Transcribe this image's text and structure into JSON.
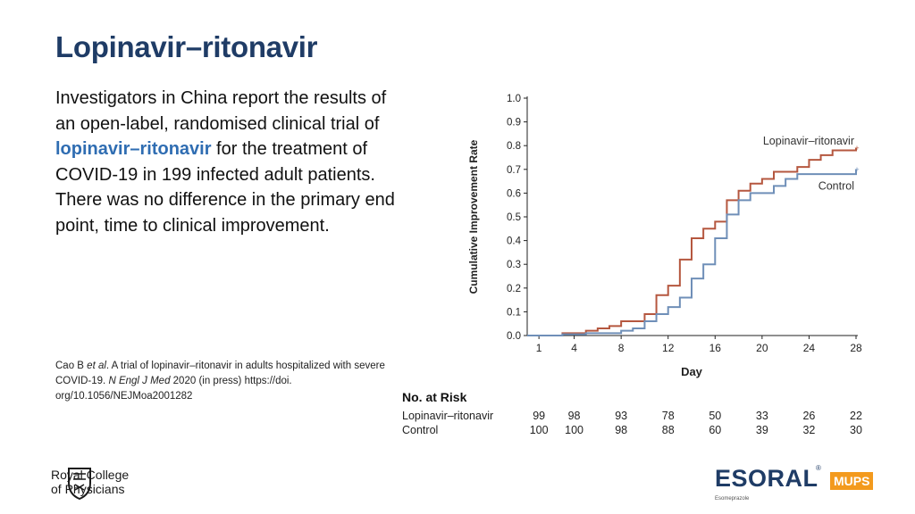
{
  "slide": {
    "title": "Lopinavir–ritonavir",
    "body_before": "Investigators in China report the results of an open-label, randomised clinical trial of ",
    "body_highlight": "lopinavir–ritonavir",
    "body_after": " for the treatment of COVID-19 in 199 infected adult patients. There was no difference in the primary end point, time to clinical improvement.",
    "citation_before": "Cao B ",
    "citation_italic1": "et al",
    "citation_mid": ". A trial of lopinavir–ritonavir in adults hospitalized with severe COVID-19. ",
    "citation_italic2": "N Engl J Med",
    "citation_after": " 2020 (in press) https://doi. org/10.1056/NEJMoa2001282"
  },
  "logos": {
    "rcp_line1": "Royal College",
    "rcp_line2": "of Physicians",
    "esoral": "ESORAL",
    "esoral_reg": "®",
    "mups": "MUPS",
    "esoral_sub": "Esomeprazole"
  },
  "colors": {
    "title": "#1f3c66",
    "highlight": "#2f6db2",
    "lopinavir_series": "#b5573f",
    "control_series": "#6f8fb8",
    "mups_badge": "#f39a1d"
  },
  "chart_data": {
    "type": "line",
    "subtype": "step",
    "ylabel": "Cumulative Improvement Rate",
    "xlabel": "Day",
    "xticks": [
      1,
      4,
      8,
      12,
      16,
      20,
      24,
      28
    ],
    "yticks": [
      "0.0",
      "0.1",
      "0.2",
      "0.3",
      "0.4",
      "0.5",
      "0.6",
      "0.7",
      "0.8",
      "0.9",
      "1.0"
    ],
    "xlim": [
      0,
      28
    ],
    "ylim": [
      0,
      1.0
    ],
    "series": [
      {
        "name": "Lopinavir–ritonavir",
        "color": "#b5573f",
        "points": [
          [
            0,
            0
          ],
          [
            3,
            0.01
          ],
          [
            5,
            0.02
          ],
          [
            6,
            0.03
          ],
          [
            7,
            0.04
          ],
          [
            8,
            0.06
          ],
          [
            10,
            0.09
          ],
          [
            11,
            0.17
          ],
          [
            12,
            0.21
          ],
          [
            13,
            0.32
          ],
          [
            14,
            0.41
          ],
          [
            15,
            0.45
          ],
          [
            16,
            0.48
          ],
          [
            17,
            0.57
          ],
          [
            18,
            0.61
          ],
          [
            19,
            0.64
          ],
          [
            20,
            0.66
          ],
          [
            21,
            0.69
          ],
          [
            23,
            0.71
          ],
          [
            24,
            0.74
          ],
          [
            25,
            0.76
          ],
          [
            26,
            0.78
          ],
          [
            28,
            0.79
          ]
        ]
      },
      {
        "name": "Control",
        "color": "#6f8fb8",
        "points": [
          [
            0,
            0
          ],
          [
            3,
            0.005
          ],
          [
            5,
            0.01
          ],
          [
            8,
            0.02
          ],
          [
            9,
            0.03
          ],
          [
            10,
            0.06
          ],
          [
            11,
            0.09
          ],
          [
            12,
            0.12
          ],
          [
            13,
            0.16
          ],
          [
            14,
            0.24
          ],
          [
            15,
            0.3
          ],
          [
            16,
            0.41
          ],
          [
            17,
            0.51
          ],
          [
            18,
            0.57
          ],
          [
            19,
            0.6
          ],
          [
            21,
            0.63
          ],
          [
            22,
            0.66
          ],
          [
            23,
            0.68
          ],
          [
            28,
            0.7
          ]
        ]
      }
    ],
    "risk_table": {
      "header": "No. at Risk",
      "rows": [
        {
          "label": "Lopinavir–ritonavir",
          "values": [
            "99",
            "98",
            "93",
            "78",
            "50",
            "33",
            "26",
            "22"
          ]
        },
        {
          "label": "Control",
          "values": [
            "100",
            "100",
            "98",
            "88",
            "60",
            "39",
            "32",
            "30"
          ]
        }
      ]
    }
  }
}
